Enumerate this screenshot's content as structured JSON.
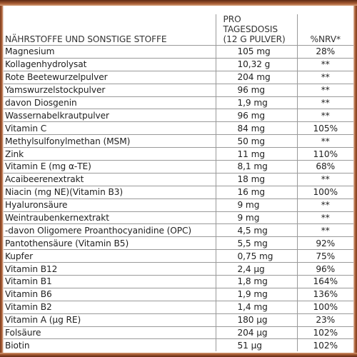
{
  "table": {
    "headers": {
      "name": "Nährstoffe und sonstige Stoffe",
      "dose_line1": "Pro Tagesdosis",
      "dose_line2": "(12 g Pulver)",
      "nrv": "%NRV*"
    },
    "rows": [
      {
        "name": "Magnesium",
        "amount": "105 mg",
        "nrv": "28%"
      },
      {
        "name": "Kollagenhydrolysat",
        "amount": "10,32 g",
        "nrv": "**"
      },
      {
        "name": "Rote Beetewurzelpulver",
        "amount": "204 mg",
        "nrv": "**"
      },
      {
        "name": "Yamswurzelstockpulver",
        "amount": "96 mg",
        "nrv": "**"
      },
      {
        "name": "davon Diosgenin",
        "amount": "1,9 mg",
        "nrv": "**"
      },
      {
        "name": "Wassernabelkrautpulver",
        "amount": "96 mg",
        "nrv": "**"
      },
      {
        "name": "Vitamin C",
        "amount": "84 mg",
        "nrv": "105%"
      },
      {
        "name": "Methylsulfonylmethan (MSM)",
        "amount": "50 mg",
        "nrv": "**"
      },
      {
        "name": "Zink",
        "amount": "11 mg",
        "nrv": "110%"
      },
      {
        "name": "Vitamin E (mg α-TE)",
        "amount": "8,1 mg",
        "nrv": "68%"
      },
      {
        "name": "Acaibeerenextrakt",
        "amount": "18 mg",
        "nrv": "**"
      },
      {
        "name": "Niacin (mg NE)(Vitamin B3)",
        "amount": "16 mg",
        "nrv": "100%"
      },
      {
        "name": "Hyaluronsäure",
        "amount": "9 mg",
        "nrv": "**"
      },
      {
        "name": "Weintraubenkernextrakt",
        "amount": "9 mg",
        "nrv": "**"
      },
      {
        "name": "-davon Oligomere Proanthocyanidine (OPC)",
        "amount": "4,5 mg",
        "nrv": "**"
      },
      {
        "name": "Pantothensäure (Vitamin B5)",
        "amount": "5,5 mg",
        "nrv": "92%"
      },
      {
        "name": "Kupfer",
        "amount": "0,75 mg",
        "nrv": "75%"
      },
      {
        "name": "Vitamin B12",
        "amount": "2,4 µg",
        "nrv": "96%"
      },
      {
        "name": "Vitamin B1",
        "amount": "1,8 mg",
        "nrv": "164%"
      },
      {
        "name": "Vitamin B6",
        "amount": "1,9 mg",
        "nrv": "136%"
      },
      {
        "name": "Vitamin B2",
        "amount": "1,4 mg",
        "nrv": "100%"
      },
      {
        "name": "Vitamin A (µg RE)",
        "amount": "180 µg",
        "nrv": "23%"
      },
      {
        "name": "Folsäure",
        "amount": "204 µg",
        "nrv": "102%"
      },
      {
        "name": "Biotin",
        "amount": "51 µg",
        "nrv": "102%"
      }
    ]
  },
  "colors": {
    "frame": "#a65a32",
    "grid": "#9a9a9a",
    "text": "#222222"
  }
}
